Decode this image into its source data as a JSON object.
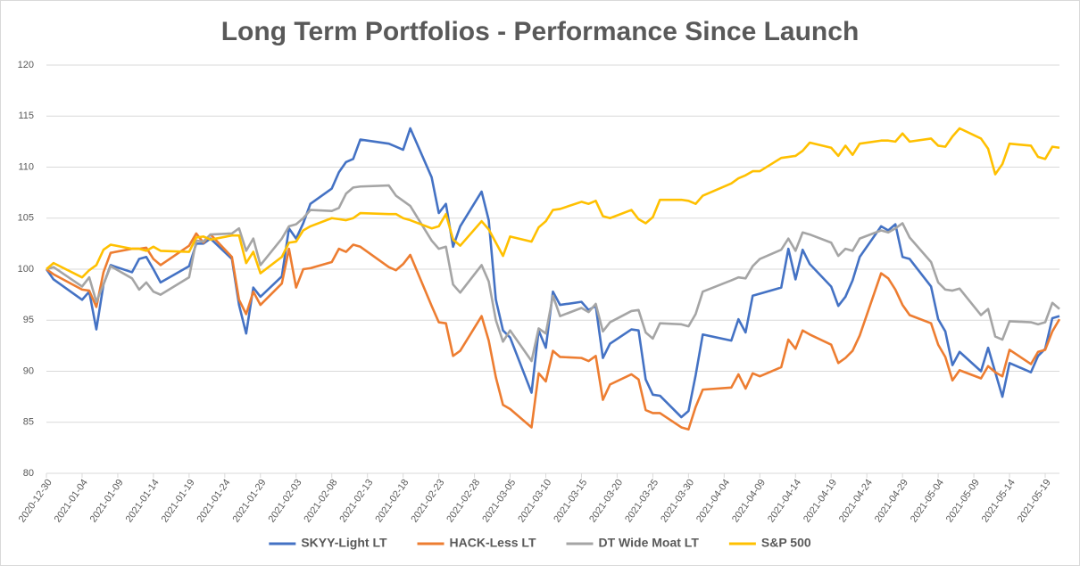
{
  "chart_data": {
    "type": "line",
    "title": "Long Term Portfolios - Performance Since Launch",
    "x": [
      "2020-12-30",
      "2020-12-31",
      "2021-01-04",
      "2021-01-05",
      "2021-01-06",
      "2021-01-07",
      "2021-01-08",
      "2021-01-11",
      "2021-01-12",
      "2021-01-13",
      "2021-01-14",
      "2021-01-15",
      "2021-01-19",
      "2021-01-20",
      "2021-01-21",
      "2021-01-22",
      "2021-01-25",
      "2021-01-26",
      "2021-01-27",
      "2021-01-28",
      "2021-01-29",
      "2021-02-01",
      "2021-02-02",
      "2021-02-03",
      "2021-02-04",
      "2021-02-05",
      "2021-02-08",
      "2021-02-09",
      "2021-02-10",
      "2021-02-11",
      "2021-02-12",
      "2021-02-16",
      "2021-02-17",
      "2021-02-18",
      "2021-02-19",
      "2021-02-22",
      "2021-02-23",
      "2021-02-24",
      "2021-02-25",
      "2021-02-26",
      "2021-03-01",
      "2021-03-02",
      "2021-03-03",
      "2021-03-04",
      "2021-03-05",
      "2021-03-08",
      "2021-03-09",
      "2021-03-10",
      "2021-03-11",
      "2021-03-12",
      "2021-03-15",
      "2021-03-16",
      "2021-03-17",
      "2021-03-18",
      "2021-03-19",
      "2021-03-22",
      "2021-03-23",
      "2021-03-24",
      "2021-03-25",
      "2021-03-26",
      "2021-03-29",
      "2021-03-30",
      "2021-03-31",
      "2021-04-01",
      "2021-04-05",
      "2021-04-06",
      "2021-04-07",
      "2021-04-08",
      "2021-04-09",
      "2021-04-12",
      "2021-04-13",
      "2021-04-14",
      "2021-04-15",
      "2021-04-16",
      "2021-04-19",
      "2021-04-20",
      "2021-04-21",
      "2021-04-22",
      "2021-04-23",
      "2021-04-26",
      "2021-04-27",
      "2021-04-28",
      "2021-04-29",
      "2021-04-30",
      "2021-05-03",
      "2021-05-04",
      "2021-05-05",
      "2021-05-06",
      "2021-05-07",
      "2021-05-10",
      "2021-05-11",
      "2021-05-12",
      "2021-05-13",
      "2021-05-14",
      "2021-05-17",
      "2021-05-18",
      "2021-05-19",
      "2021-05-20",
      "2021-05-21"
    ],
    "xlim": [
      "2020-12-30",
      "2021-05-21"
    ],
    "xticks": [
      "2020-12-30",
      "2021-01-04",
      "2021-01-09",
      "2021-01-14",
      "2021-01-19",
      "2021-01-24",
      "2021-01-29",
      "2021-02-03",
      "2021-02-08",
      "2021-02-13",
      "2021-02-18",
      "2021-02-23",
      "2021-02-28",
      "2021-03-05",
      "2021-03-10",
      "2021-03-15",
      "2021-03-20",
      "2021-03-25",
      "2021-03-30",
      "2021-04-04",
      "2021-04-09",
      "2021-04-14",
      "2021-04-19",
      "2021-04-24",
      "2021-04-29",
      "2021-05-04",
      "2021-05-09",
      "2021-05-14",
      "2021-05-19"
    ],
    "ylim": [
      80,
      120
    ],
    "yticks": [
      80,
      85,
      90,
      95,
      100,
      105,
      110,
      115,
      120
    ],
    "grid": true,
    "legend": "bottom",
    "series": [
      {
        "name": "SKYY-Light LT",
        "color": "#4472c4",
        "values": [
          100,
          99.0,
          97.0,
          97.8,
          94.1,
          98.5,
          100.4,
          99.7,
          101.0,
          101.2,
          100.0,
          98.7,
          100.3,
          102.5,
          102.5,
          103.0,
          101.0,
          96.5,
          93.7,
          98.2,
          97.3,
          99.3,
          104.0,
          103.0,
          104.5,
          106.4,
          107.9,
          109.5,
          110.5,
          110.8,
          112.7,
          112.3,
          112.0,
          111.7,
          113.8,
          109.0,
          105.5,
          106.4,
          102.2,
          104.2,
          107.6,
          104.8,
          97.0,
          94.0,
          93.3,
          87.9,
          94.0,
          92.3,
          97.8,
          96.5,
          96.8,
          96.0,
          96.4,
          91.3,
          92.7,
          94.1,
          94.0,
          89.2,
          87.7,
          87.6,
          85.5,
          86.1,
          89.6,
          93.6,
          93.0,
          95.1,
          93.8,
          97.4,
          97.6,
          98.2,
          102.0,
          99.0,
          101.9,
          100.5,
          98.3,
          96.4,
          97.3,
          98.9,
          101.2,
          104.2,
          103.8,
          104.4,
          101.2,
          101.0,
          98.3,
          95.1,
          93.9,
          90.6,
          91.9,
          90.0,
          92.3,
          89.9,
          87.5,
          90.8,
          89.9,
          91.5,
          92.2,
          95.2,
          95.4
        ]
      },
      {
        "name": "HACK-Less LT",
        "color": "#ed7d31",
        "values": [
          100,
          99.5,
          98.0,
          97.9,
          96.3,
          99.7,
          101.6,
          102.0,
          102.0,
          102.1,
          101.0,
          100.4,
          102.3,
          103.5,
          102.6,
          103.4,
          101.2,
          97.0,
          95.6,
          97.8,
          96.5,
          98.6,
          102.0,
          98.2,
          100.0,
          100.1,
          100.7,
          102.0,
          101.7,
          102.4,
          102.2,
          100.2,
          99.9,
          100.5,
          101.4,
          96.4,
          94.8,
          94.7,
          91.5,
          92.0,
          95.4,
          93.0,
          89.4,
          86.7,
          86.3,
          84.5,
          89.8,
          89.0,
          92.0,
          91.4,
          91.3,
          91.0,
          91.5,
          87.2,
          88.7,
          89.7,
          89.2,
          86.2,
          85.9,
          85.9,
          84.5,
          84.3,
          86.5,
          88.2,
          88.4,
          89.7,
          88.3,
          89.8,
          89.5,
          90.4,
          93.1,
          92.2,
          94.0,
          93.6,
          92.6,
          90.8,
          91.3,
          92.0,
          93.5,
          99.6,
          99.1,
          98.0,
          96.5,
          95.5,
          94.7,
          92.6,
          91.4,
          89.1,
          90.1,
          89.3,
          90.5,
          89.9,
          89.5,
          92.1,
          90.7,
          91.9,
          92.1,
          93.9,
          95.1
        ]
      },
      {
        "name": "DT Wide Moat LT",
        "color": "#a5a5a5",
        "values": [
          100,
          100.2,
          98.3,
          99.2,
          96.8,
          98.5,
          100.3,
          99.1,
          98.0,
          98.7,
          97.8,
          97.5,
          99.2,
          102.8,
          102.7,
          103.4,
          103.5,
          104.0,
          101.8,
          103.0,
          100.4,
          103.0,
          104.2,
          104.4,
          105.0,
          105.8,
          105.7,
          106.0,
          107.4,
          108.0,
          108.1,
          108.2,
          107.2,
          106.7,
          106.2,
          102.8,
          102.0,
          102.2,
          98.5,
          97.7,
          100.4,
          98.8,
          95.0,
          92.9,
          94.0,
          91.0,
          94.2,
          93.7,
          97.4,
          95.4,
          96.2,
          95.8,
          96.6,
          93.9,
          94.8,
          95.9,
          96.0,
          93.8,
          93.2,
          94.7,
          94.6,
          94.4,
          95.6,
          97.8,
          98.9,
          99.2,
          99.1,
          100.3,
          101.0,
          101.9,
          103.0,
          101.8,
          103.6,
          103.4,
          102.6,
          101.3,
          102.0,
          101.8,
          103.0,
          103.8,
          103.6,
          104.0,
          104.5,
          103.1,
          100.7,
          98.7,
          98.0,
          97.9,
          98.1,
          95.5,
          96.1,
          93.4,
          93.1,
          94.9,
          94.8,
          94.6,
          94.8,
          96.7,
          96.1
        ]
      },
      {
        "name": "S&P 500",
        "color": "#ffc000",
        "values": [
          100,
          100.6,
          99.2,
          99.9,
          100.4,
          101.9,
          102.4,
          102.0,
          102.0,
          101.8,
          102.2,
          101.8,
          101.7,
          103.1,
          103.2,
          102.9,
          103.3,
          103.3,
          100.6,
          101.7,
          99.6,
          101.2,
          102.6,
          102.7,
          103.8,
          104.2,
          105.0,
          104.9,
          104.8,
          105.0,
          105.5,
          105.4,
          105.4,
          105.0,
          104.8,
          104.0,
          104.2,
          105.4,
          102.9,
          102.3,
          104.7,
          103.9,
          102.6,
          101.3,
          103.2,
          102.7,
          104.1,
          104.7,
          105.8,
          105.9,
          106.6,
          106.4,
          106.7,
          105.2,
          105.0,
          105.8,
          104.9,
          104.5,
          105.1,
          106.8,
          106.8,
          106.7,
          106.4,
          107.2,
          108.4,
          108.9,
          109.2,
          109.6,
          109.6,
          110.9,
          111.0,
          111.1,
          111.6,
          112.4,
          111.9,
          111.1,
          112.1,
          111.2,
          112.3,
          112.6,
          112.6,
          112.5,
          113.3,
          112.5,
          112.8,
          112.1,
          112.0,
          113.0,
          113.8,
          112.8,
          111.8,
          109.3,
          110.3,
          112.3,
          112.1,
          111.0,
          110.8,
          112.0,
          111.9
        ]
      }
    ]
  }
}
